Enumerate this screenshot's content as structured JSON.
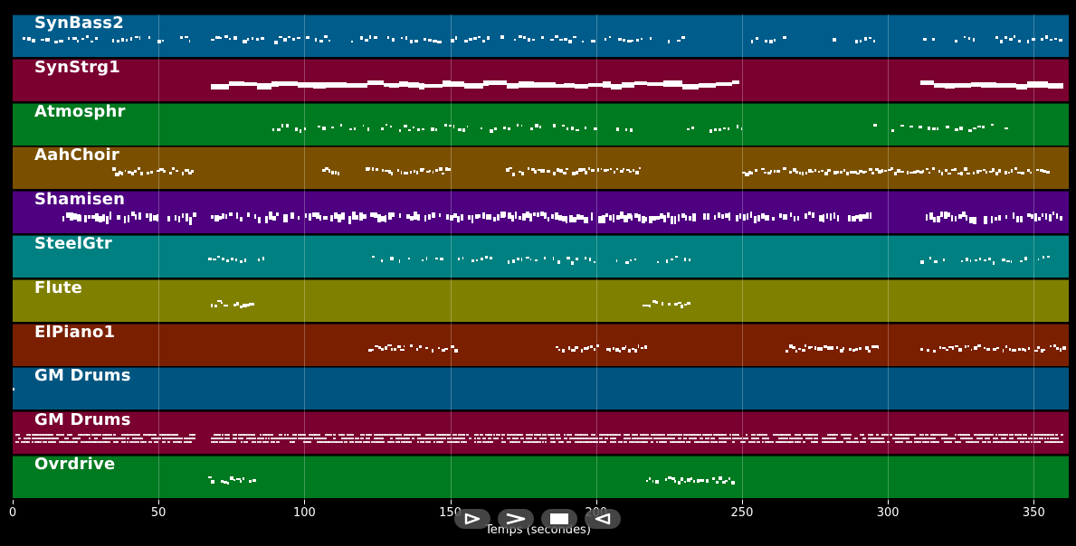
{
  "timeline": {
    "max_seconds": 362,
    "xlabel": "Temps (secondes)",
    "ticks": [
      0,
      50,
      100,
      150,
      200,
      250,
      300,
      350
    ],
    "grid": true
  },
  "tracks": [
    {
      "name": "SynBass2",
      "color": "#005C8A",
      "density": "sparse",
      "segments": [
        [
          2,
          31
        ],
        [
          34,
          62
        ],
        [
          68,
          230
        ],
        [
          250,
          265
        ],
        [
          281,
          295
        ],
        [
          312,
          360
        ]
      ]
    },
    {
      "name": "SynStrg1",
      "color": "#7A0030",
      "density": "thick",
      "segments": [
        [
          68,
          249
        ],
        [
          311,
          360
        ]
      ]
    },
    {
      "name": "Atmosphr",
      "color": "#007A20",
      "density": "sparse",
      "segments": [
        [
          89,
          215
        ],
        [
          231,
          251
        ],
        [
          295,
          340
        ]
      ]
    },
    {
      "name": "AahChoir",
      "color": "#7A5000",
      "density": "medium",
      "segments": [
        [
          33,
          62
        ],
        [
          106,
          112
        ],
        [
          121,
          150
        ],
        [
          169,
          215
        ],
        [
          250,
          356
        ]
      ]
    },
    {
      "name": "Shamisen",
      "color": "#4E0080",
      "density": "dense",
      "segments": [
        [
          17,
          62
        ],
        [
          68,
          295
        ],
        [
          313,
          360
        ]
      ]
    },
    {
      "name": "SteelGtr",
      "color": "#008080",
      "density": "sparse",
      "segments": [
        [
          67,
          87
        ],
        [
          123,
          232
        ],
        [
          311,
          360
        ]
      ]
    },
    {
      "name": "Flute",
      "color": "#808000",
      "density": "medium",
      "segments": [
        [
          67,
          83
        ],
        [
          216,
          232
        ]
      ]
    },
    {
      "name": "ElPiano1",
      "color": "#7A2000",
      "density": "medium",
      "segments": [
        [
          122,
          152
        ],
        [
          186,
          217
        ],
        [
          265,
          297
        ],
        [
          311,
          360
        ]
      ]
    },
    {
      "name": "GM Drums",
      "color": "#005580",
      "density": "none",
      "segments": [
        [
          0,
          0.5
        ]
      ]
    },
    {
      "name": "GM Drums",
      "color": "#7A0030",
      "density": "drums",
      "segments": [
        [
          1,
          62
        ],
        [
          68,
          360
        ]
      ]
    },
    {
      "name": "Ovrdrive",
      "color": "#007A20",
      "density": "medium",
      "segments": [
        [
          67,
          83
        ],
        [
          216,
          247
        ]
      ]
    }
  ],
  "controls": [
    {
      "name": "play-button",
      "icon": "play-outline-icon"
    },
    {
      "name": "forward-button",
      "icon": "chevron-right-icon"
    },
    {
      "name": "stop-button",
      "icon": "stop-icon"
    },
    {
      "name": "rewind-button",
      "icon": "rewind-outline-icon"
    }
  ]
}
